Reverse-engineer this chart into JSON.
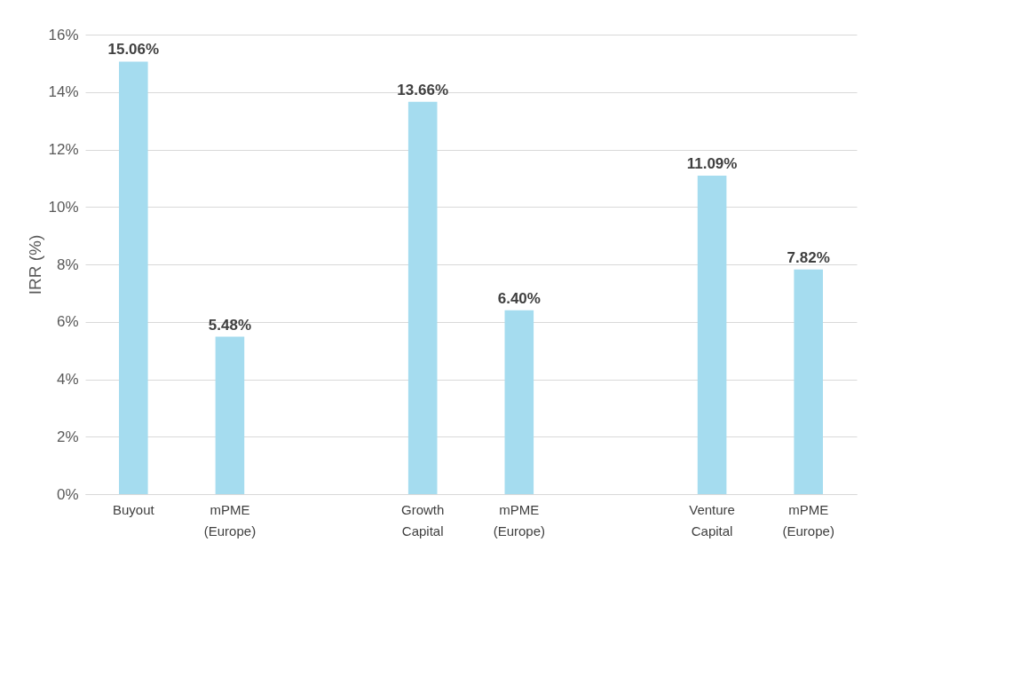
{
  "chart_data": {
    "type": "bar",
    "ylabel": "IRR (%)",
    "categories": [
      "Buyout",
      "mPME (Europe)",
      null,
      "Growth Capital",
      "mPME (Europe)",
      null,
      "Venture Capital",
      "mPME (Europe)"
    ],
    "values": [
      15.06,
      5.48,
      null,
      13.66,
      6.4,
      null,
      11.09,
      7.82
    ],
    "value_labels": [
      "15.06%",
      "5.48%",
      null,
      "13.66%",
      "6.40%",
      null,
      "11.09%",
      "7.82%"
    ],
    "color": "#a5dcef",
    "ylim": [
      0,
      16
    ],
    "yticks": [
      {
        "value": 0,
        "label": "0%"
      },
      {
        "value": 2,
        "label": "2%"
      },
      {
        "value": 4,
        "label": "4%"
      },
      {
        "value": 6,
        "label": "6%"
      },
      {
        "value": 8,
        "label": "8%"
      },
      {
        "value": 10,
        "label": "10%"
      },
      {
        "value": 12,
        "label": "12%"
      },
      {
        "value": 14,
        "label": "14%"
      },
      {
        "value": 16,
        "label": "16%"
      }
    ],
    "grid": "y"
  }
}
